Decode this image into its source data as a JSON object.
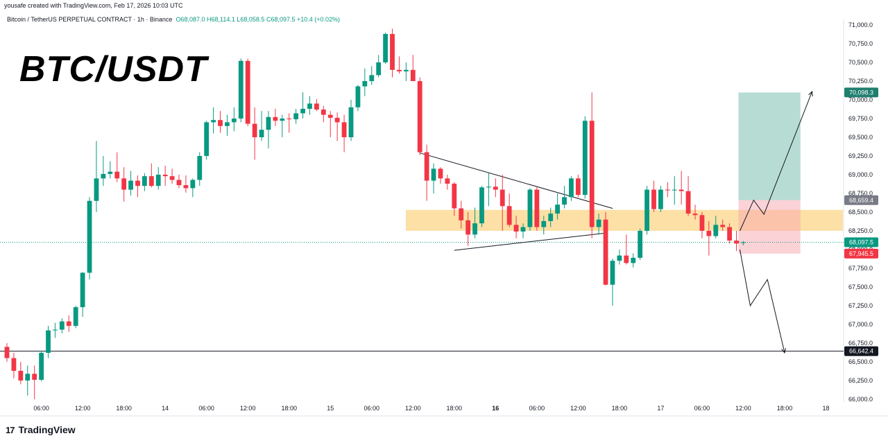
{
  "header": {
    "created_by": "yousafe created with TradingView.com, Feb 17, 2026 10:03 UTC",
    "symbol": "Bitcoin / TetherUS PERPETUAL CONTRACT · 1h · Binance",
    "ohlc": {
      "o": "O68,087.0",
      "h": "H68,114.1",
      "l": "L68,058.5",
      "c": "C68,097.5",
      "change": "+10.4 (+0.02%)"
    }
  },
  "overlay_title": "BTC/USDT",
  "brand": {
    "logo": "17",
    "name": "TradingView"
  },
  "colors": {
    "up": "#089981",
    "down": "#f23645",
    "zone": "#f9c75c",
    "target": "#7cbfae",
    "stop": "#f7a6ad"
  },
  "chart_data": {
    "type": "candlestick",
    "ylim": [
      66000,
      71200
    ],
    "y_ticks": [
      "71,000.0",
      "70,750.0",
      "70,500.0",
      "70,250.0",
      "70,000.0",
      "69,750.0",
      "69,500.0",
      "69,250.0",
      "69,000.0",
      "68,750.0",
      "68,500.0",
      "68,250.0",
      "68,000.0",
      "67,750.0",
      "67,500.0",
      "67,250.0",
      "67,000.0",
      "66,750.0",
      "66,500.0",
      "66,250.0",
      "66,000.0"
    ],
    "x_ticks": [
      {
        "label": "06:00",
        "bar": 5
      },
      {
        "label": "12:00",
        "bar": 11
      },
      {
        "label": "18:00",
        "bar": 17
      },
      {
        "label": "14",
        "bar": 23
      },
      {
        "label": "06:00",
        "bar": 29
      },
      {
        "label": "12:00",
        "bar": 35
      },
      {
        "label": "18:00",
        "bar": 41
      },
      {
        "label": "15",
        "bar": 47
      },
      {
        "label": "06:00",
        "bar": 53
      },
      {
        "label": "12:00",
        "bar": 59
      },
      {
        "label": "18:00",
        "bar": 65
      },
      {
        "label": "16",
        "bar": 71,
        "bold": true
      },
      {
        "label": "06:00",
        "bar": 77
      },
      {
        "label": "12:00",
        "bar": 83
      },
      {
        "label": "18:00",
        "bar": 89
      },
      {
        "label": "17",
        "bar": 95
      },
      {
        "label": "06:00",
        "bar": 101
      },
      {
        "label": "12:00",
        "bar": 107
      },
      {
        "label": "18:00",
        "bar": 113
      },
      {
        "label": "18",
        "bar": 119
      }
    ],
    "candles": [
      [
        66700,
        66750,
        66500,
        66550
      ],
      [
        66550,
        66620,
        66280,
        66380
      ],
      [
        66380,
        66500,
        66200,
        66250
      ],
      [
        66250,
        66450,
        66050,
        66340
      ],
      [
        66340,
        66450,
        66000,
        66260
      ],
      [
        66260,
        66650,
        66240,
        66620
      ],
      [
        66620,
        66980,
        66550,
        66920
      ],
      [
        66920,
        67020,
        66820,
        66930
      ],
      [
        66930,
        67080,
        66880,
        67040
      ],
      [
        67040,
        67120,
        66900,
        66980
      ],
      [
        66980,
        67250,
        66950,
        67230
      ],
      [
        67230,
        67700,
        67100,
        67690
      ],
      [
        67690,
        68700,
        67600,
        68650
      ],
      [
        68650,
        69450,
        68500,
        68950
      ],
      [
        68950,
        69250,
        68850,
        69010
      ],
      [
        69010,
        69180,
        68950,
        69040
      ],
      [
        69040,
        69300,
        68900,
        68950
      ],
      [
        68950,
        69100,
        68640,
        68800
      ],
      [
        68800,
        69050,
        68720,
        68920
      ],
      [
        68920,
        68990,
        68700,
        68850
      ],
      [
        68850,
        69020,
        68780,
        68980
      ],
      [
        68980,
        69150,
        68830,
        68850
      ],
      [
        68850,
        69100,
        68800,
        69000
      ],
      [
        69000,
        69120,
        68850,
        68980
      ],
      [
        68980,
        69080,
        68880,
        68930
      ],
      [
        68930,
        69000,
        68820,
        68860
      ],
      [
        68860,
        68990,
        68760,
        68820
      ],
      [
        68820,
        68950,
        68700,
        68930
      ],
      [
        68930,
        69300,
        68850,
        69250
      ],
      [
        69250,
        69720,
        69200,
        69700
      ],
      [
        69700,
        69900,
        69550,
        69730
      ],
      [
        69730,
        69850,
        69560,
        69650
      ],
      [
        69650,
        69800,
        69520,
        69700
      ],
      [
        69700,
        69900,
        69580,
        69750
      ],
      [
        69750,
        70550,
        69700,
        70520
      ],
      [
        70520,
        70550,
        69650,
        69680
      ],
      [
        69680,
        69900,
        69200,
        69500
      ],
      [
        69500,
        69850,
        69450,
        69600
      ],
      [
        69600,
        69850,
        69350,
        69770
      ],
      [
        69770,
        69880,
        69650,
        69720
      ],
      [
        69720,
        69800,
        69500,
        69750
      ],
      [
        69750,
        69820,
        69560,
        69740
      ],
      [
        69740,
        69880,
        69680,
        69820
      ],
      [
        69820,
        70100,
        69750,
        69880
      ],
      [
        69880,
        70050,
        69800,
        69950
      ],
      [
        69950,
        70010,
        69850,
        69870
      ],
      [
        69870,
        69920,
        69700,
        69800
      ],
      [
        69800,
        69850,
        69500,
        69760
      ],
      [
        69760,
        69830,
        69450,
        69700
      ],
      [
        69700,
        69800,
        69300,
        69500
      ],
      [
        69500,
        70000,
        69450,
        69900
      ],
      [
        69900,
        70200,
        69850,
        70180
      ],
      [
        70180,
        70420,
        70050,
        70250
      ],
      [
        70250,
        70450,
        70200,
        70330
      ],
      [
        70330,
        70600,
        70300,
        70500
      ],
      [
        70500,
        70900,
        70480,
        70880
      ],
      [
        70880,
        70950,
        70300,
        70400
      ],
      [
        70400,
        70580,
        70350,
        70380
      ],
      [
        70380,
        70500,
        70250,
        70400
      ],
      [
        70400,
        70600,
        70250,
        70250
      ],
      [
        70250,
        70300,
        69260,
        69300
      ],
      [
        69300,
        69400,
        68650,
        68920
      ],
      [
        68920,
        69150,
        68750,
        69080
      ],
      [
        69080,
        69100,
        68880,
        68950
      ],
      [
        68950,
        69000,
        68800,
        68880
      ],
      [
        68880,
        68900,
        68450,
        68550
      ],
      [
        68550,
        68650,
        68280,
        68390
      ],
      [
        68390,
        68500,
        68050,
        68200
      ],
      [
        68200,
        68560,
        68150,
        68350
      ],
      [
        68350,
        68850,
        68300,
        68830
      ],
      [
        68830,
        69020,
        68580,
        68840
      ],
      [
        68840,
        68950,
        68700,
        68800
      ],
      [
        68800,
        69000,
        68250,
        68580
      ],
      [
        68580,
        68750,
        68300,
        68330
      ],
      [
        68330,
        68450,
        68150,
        68240
      ],
      [
        68240,
        68350,
        68150,
        68300
      ],
      [
        68300,
        68820,
        68250,
        68800
      ],
      [
        68800,
        68850,
        68250,
        68300
      ],
      [
        68300,
        68450,
        68200,
        68380
      ],
      [
        68380,
        68560,
        68300,
        68480
      ],
      [
        68480,
        68750,
        68400,
        68600
      ],
      [
        68600,
        68850,
        68550,
        68700
      ],
      [
        68700,
        68980,
        68650,
        68950
      ],
      [
        68950,
        69000,
        68700,
        68730
      ],
      [
        68730,
        69780,
        68680,
        69720
      ],
      [
        69720,
        70100,
        68150,
        68300
      ],
      [
        68300,
        68480,
        68200,
        68400
      ],
      [
        68400,
        68500,
        67520,
        67530
      ],
      [
        67530,
        67880,
        67250,
        67850
      ],
      [
        67850,
        68000,
        67800,
        67920
      ],
      [
        67920,
        68200,
        67800,
        67820
      ],
      [
        67820,
        67950,
        67760,
        67890
      ],
      [
        67890,
        68280,
        67860,
        68250
      ],
      [
        68250,
        68850,
        68200,
        68800
      ],
      [
        68800,
        68920,
        68500,
        68540
      ],
      [
        68540,
        68850,
        68500,
        68800
      ],
      [
        68800,
        68900,
        68700,
        68790
      ],
      [
        68790,
        68980,
        68600,
        68800
      ],
      [
        68800,
        69050,
        68600,
        68780
      ],
      [
        68780,
        68980,
        68450,
        68480
      ],
      [
        68480,
        68600,
        68400,
        68460
      ],
      [
        68460,
        68500,
        68150,
        68250
      ],
      [
        68250,
        68380,
        67920,
        68180
      ],
      [
        68180,
        68450,
        68150,
        68330
      ],
      [
        68330,
        68400,
        68250,
        68300
      ],
      [
        68300,
        68350,
        68080,
        68120
      ],
      [
        68120,
        68250,
        67980,
        68080
      ],
      [
        68087,
        68114,
        68058,
        68097
      ]
    ],
    "support_zone": [
      68250,
      68530
    ],
    "horizontal_line": 66642.4,
    "current_price": 68097.5,
    "position": {
      "entry": 68659.4,
      "target": 70098.3,
      "stop": 67945.5
    },
    "price_labels": {
      "target": "70,098.3",
      "entry": "68,659.4",
      "current": "68,097.5",
      "stop": "67,945.5",
      "line": "66,642.4"
    },
    "triangle": {
      "upper": [
        [
          60,
          69290
        ],
        [
          88,
          68550
        ]
      ],
      "lower": [
        [
          65,
          67990
        ],
        [
          87,
          68220
        ]
      ]
    },
    "scenario_up": [
      [
        106.5,
        68250
      ],
      [
        108.5,
        68660
      ],
      [
        110,
        68470
      ],
      [
        117,
        70110
      ]
    ],
    "scenario_down": [
      [
        106.5,
        68000
      ],
      [
        108,
        67250
      ],
      [
        110.5,
        67600
      ],
      [
        113,
        66620
      ]
    ]
  }
}
